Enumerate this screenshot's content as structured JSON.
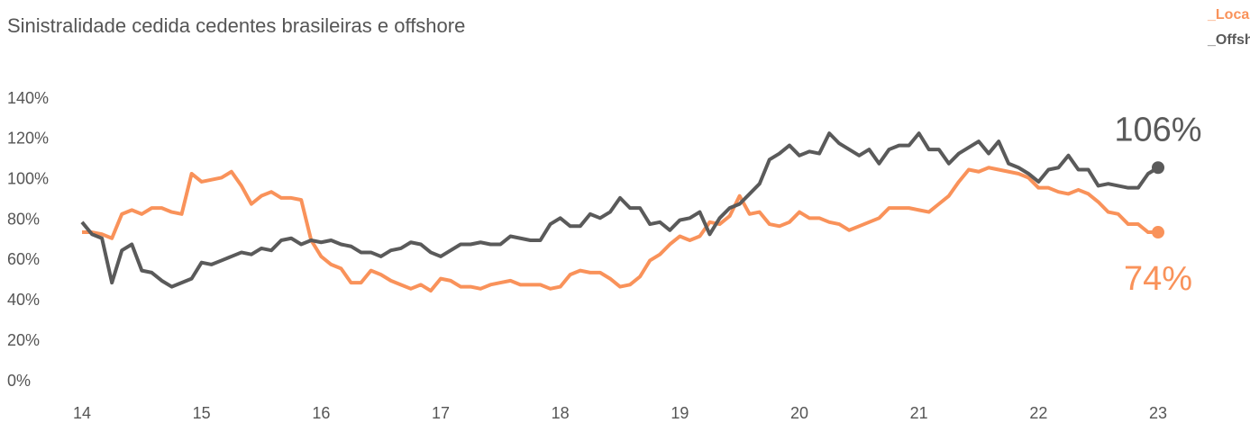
{
  "chart_data": {
    "type": "line",
    "title": "Sinistralidade cedida cedentes brasileiras e offshore",
    "x": [
      0,
      1,
      2,
      3,
      4,
      5,
      6,
      7,
      8,
      9,
      10,
      11,
      12,
      13,
      14,
      15,
      16,
      17,
      18,
      19,
      20,
      21,
      22,
      23,
      24,
      25,
      26,
      27,
      28,
      29,
      30,
      31,
      32,
      33,
      34,
      35,
      36,
      37,
      38,
      39,
      40,
      41,
      42,
      43,
      44,
      45,
      46,
      47,
      48,
      49,
      50,
      51,
      52,
      53,
      54,
      55,
      56,
      57,
      58,
      59,
      60,
      61,
      62,
      63,
      64,
      65,
      66,
      67,
      68,
      69,
      70,
      71,
      72,
      73,
      74,
      75,
      76,
      77,
      78,
      79,
      80,
      81,
      82,
      83,
      84,
      85,
      86,
      87,
      88,
      89,
      90,
      91,
      92,
      93,
      94,
      95,
      96,
      97,
      98,
      99,
      100,
      101,
      102,
      103,
      104,
      105,
      106,
      107,
      108
    ],
    "xlim": [
      0,
      108
    ],
    "xticks": [
      {
        "value": 0,
        "label": "14"
      },
      {
        "value": 12,
        "label": "15"
      },
      {
        "value": 24,
        "label": "16"
      },
      {
        "value": 36,
        "label": "17"
      },
      {
        "value": 48,
        "label": "18"
      },
      {
        "value": 60,
        "label": "19"
      },
      {
        "value": 72,
        "label": "20"
      },
      {
        "value": 84,
        "label": "21"
      },
      {
        "value": 96,
        "label": "22"
      },
      {
        "value": 108,
        "label": "23"
      }
    ],
    "ylim": [
      0,
      140
    ],
    "yticks": [
      {
        "value": 0,
        "label": "0%"
      },
      {
        "value": 20,
        "label": "20%"
      },
      {
        "value": 40,
        "label": "40%"
      },
      {
        "value": 60,
        "label": "60%"
      },
      {
        "value": 80,
        "label": "80%"
      },
      {
        "value": 100,
        "label": "100%"
      },
      {
        "value": 120,
        "label": "120%"
      },
      {
        "value": 140,
        "label": "140%"
      }
    ],
    "legend": "top-right",
    "series": [
      {
        "name": "_Locais",
        "color": "#f9925a",
        "last_label": "74%",
        "values": [
          74,
          74,
          73,
          71,
          83,
          85,
          83,
          86,
          86,
          84,
          83,
          103,
          99,
          100,
          101,
          104,
          97,
          88,
          92,
          94,
          91,
          91,
          90,
          70,
          62,
          58,
          56,
          49,
          49,
          55,
          53,
          50,
          48,
          46,
          48,
          45,
          51,
          50,
          47,
          47,
          46,
          48,
          49,
          50,
          48,
          48,
          48,
          46,
          47,
          53,
          55,
          54,
          54,
          51,
          47,
          48,
          52,
          60,
          63,
          68,
          72,
          70,
          72,
          79,
          78,
          82,
          92,
          83,
          84,
          78,
          77,
          79,
          84,
          81,
          81,
          79,
          78,
          75,
          77,
          79,
          81,
          86,
          86,
          86,
          85,
          84,
          88,
          92,
          99,
          105,
          104,
          106,
          105,
          104,
          103,
          101,
          96,
          96,
          94,
          93,
          95,
          93,
          89,
          84,
          83,
          78,
          78,
          74,
          74
        ]
      },
      {
        "name": "_Offshore",
        "color": "#5a5a5a",
        "last_label": "106%",
        "values": [
          79,
          73,
          71,
          49,
          65,
          68,
          55,
          54,
          50,
          47,
          49,
          51,
          59,
          58,
          60,
          62,
          64,
          63,
          66,
          65,
          70,
          71,
          68,
          70,
          69,
          70,
          68,
          67,
          64,
          64,
          62,
          65,
          66,
          69,
          68,
          64,
          62,
          65,
          68,
          68,
          69,
          68,
          68,
          72,
          71,
          70,
          70,
          78,
          81,
          77,
          77,
          83,
          81,
          84,
          91,
          86,
          86,
          78,
          79,
          75,
          80,
          81,
          84,
          73,
          81,
          86,
          88,
          93,
          98,
          110,
          113,
          117,
          112,
          114,
          113,
          123,
          118,
          115,
          112,
          115,
          108,
          115,
          117,
          117,
          123,
          115,
          115,
          108,
          113,
          116,
          119,
          113,
          119,
          108,
          106,
          103,
          99,
          105,
          106,
          112,
          105,
          105,
          97,
          98,
          97,
          96,
          96,
          103,
          106
        ]
      }
    ]
  }
}
